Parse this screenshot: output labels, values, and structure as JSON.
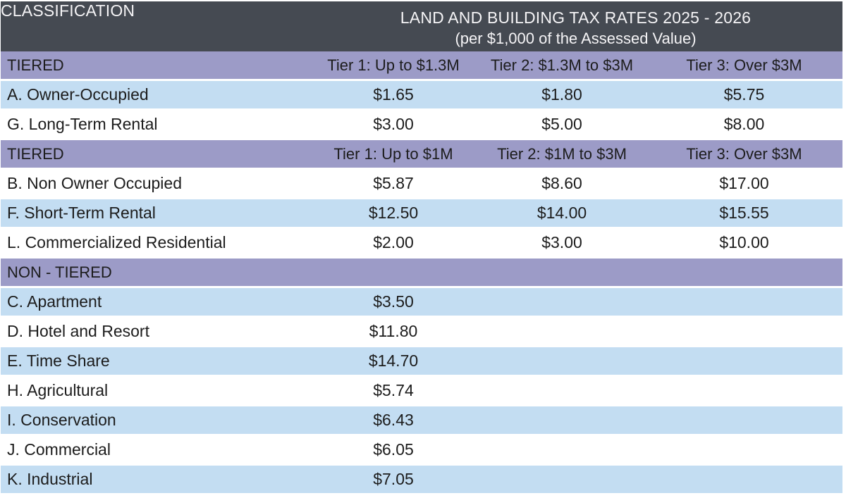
{
  "header": {
    "classification_label": "CLASSIFICATION",
    "title": "LAND AND BUILDING TAX RATES 2025 - 2026",
    "subtitle": "(per $1,000 of the Assessed Value)"
  },
  "colors": {
    "header_bg": "#454a52",
    "header_text": "#f5f4f6",
    "section_bg": "#9c9bc7",
    "row_alt_bg": "#c3ddf2",
    "row_bg": "#ffffff",
    "text": "#1c1c1c"
  },
  "table": {
    "sections": [
      {
        "header": {
          "label": "TIERED",
          "tiers": [
            "Tier 1: Up to $1.3M",
            "Tier 2: $1.3M to $3M",
            "Tier 3: Over $3M"
          ]
        },
        "rows": [
          {
            "label": "A. Owner-Occupied",
            "shade": "blue",
            "values": [
              "$1.65",
              "$1.80",
              "$5.75"
            ]
          },
          {
            "label": "G. Long-Term Rental",
            "shade": "white",
            "values": [
              "$3.00",
              "$5.00",
              "$8.00"
            ]
          }
        ]
      },
      {
        "header": {
          "label": "TIERED",
          "tiers": [
            "Tier 1: Up to $1M",
            "Tier 2: $1M to $3M",
            "Tier 3: Over $3M"
          ]
        },
        "rows": [
          {
            "label": "B. Non Owner Occupied",
            "shade": "white",
            "values": [
              "$5.87",
              "$8.60",
              "$17.00"
            ]
          },
          {
            "label": "F. Short-Term Rental",
            "shade": "blue",
            "values": [
              "$12.50",
              "$14.00",
              "$15.55"
            ]
          },
          {
            "label": "L. Commercialized Residential",
            "shade": "white",
            "values": [
              "$2.00",
              "$3.00",
              "$10.00"
            ]
          }
        ]
      },
      {
        "header": {
          "label": "NON - TIERED",
          "tiers": []
        },
        "rows": [
          {
            "label": "C. Apartment",
            "shade": "blue",
            "values": [
              "$3.50",
              "",
              ""
            ]
          },
          {
            "label": "D. Hotel and Resort",
            "shade": "white",
            "values": [
              "$11.80",
              "",
              ""
            ]
          },
          {
            "label": "E. Time Share",
            "shade": "blue",
            "values": [
              "$14.70",
              "",
              ""
            ]
          },
          {
            "label": "H. Agricultural",
            "shade": "white",
            "values": [
              "$5.74",
              "",
              ""
            ]
          },
          {
            "label": "I. Conservation",
            "shade": "blue",
            "values": [
              "$6.43",
              "",
              ""
            ]
          },
          {
            "label": "J. Commercial",
            "shade": "white",
            "values": [
              "$6.05",
              "",
              ""
            ]
          },
          {
            "label": "K. Industrial",
            "shade": "blue",
            "values": [
              "$7.05",
              "",
              ""
            ]
          }
        ]
      }
    ]
  }
}
